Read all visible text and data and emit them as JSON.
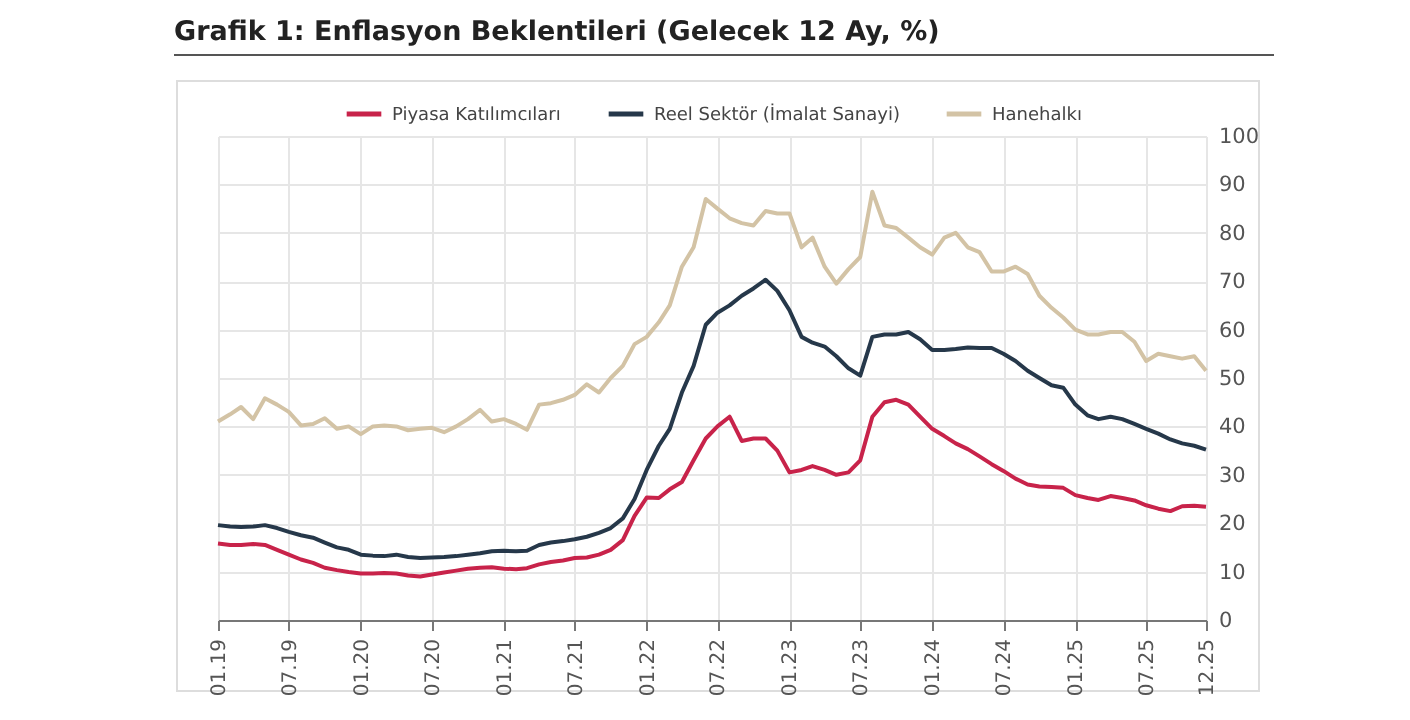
{
  "chart_data": {
    "type": "line",
    "title": "Grafik 1: Enflasyon Beklentileri (Gelecek 12 Ay, %)",
    "x": [
      "2019-01",
      "2019-02",
      "2019-03",
      "2019-04",
      "2019-05",
      "2019-06",
      "2019-07",
      "2019-08",
      "2019-09",
      "2019-10",
      "2019-11",
      "2019-12",
      "2020-01",
      "2020-02",
      "2020-03",
      "2020-04",
      "2020-05",
      "2020-06",
      "2020-07",
      "2020-08",
      "2020-09",
      "2020-10",
      "2020-11",
      "2020-12",
      "2021-01",
      "2021-02",
      "2021-03",
      "2021-04",
      "2021-05",
      "2021-06",
      "2021-07",
      "2021-08",
      "2021-09",
      "2021-10",
      "2021-11",
      "2021-12",
      "2022-01",
      "2022-02",
      "2022-03",
      "2022-04",
      "2022-05",
      "2022-06",
      "2022-07",
      "2022-08",
      "2022-09",
      "2022-10",
      "2022-11",
      "2022-12",
      "2023-01",
      "2023-02",
      "2023-03",
      "2023-04",
      "2023-05",
      "2023-06",
      "2023-07",
      "2023-08",
      "2023-09",
      "2023-10",
      "2023-11",
      "2023-12",
      "2024-01",
      "2024-02",
      "2024-03",
      "2024-04",
      "2024-05",
      "2024-06",
      "2024-07",
      "2024-08",
      "2024-09",
      "2024-10",
      "2024-11",
      "2024-12",
      "2025-01",
      "2025-02",
      "2025-03",
      "2025-04",
      "2025-05",
      "2025-06",
      "2025-07",
      "2025-08",
      "2025-09",
      "2025-10",
      "2025-11",
      "2025-12"
    ],
    "series": [
      {
        "name": "Piyasa Katılımcıları",
        "color": "#c8234a",
        "values": [
          15.8,
          15.5,
          15.5,
          15.7,
          15.5,
          14.5,
          13.5,
          12.5,
          11.8,
          10.8,
          10.3,
          9.9,
          9.6,
          9.6,
          9.7,
          9.6,
          9.2,
          9.0,
          9.4,
          9.8,
          10.2,
          10.6,
          10.8,
          10.9,
          10.6,
          10.5,
          10.7,
          11.5,
          12.0,
          12.3,
          12.8,
          12.9,
          13.5,
          14.5,
          16.5,
          21.5,
          25.3,
          25.2,
          27,
          28.5,
          33,
          37.5,
          40,
          42,
          37,
          37.5,
          37.5,
          35,
          30.5,
          31,
          31.8,
          31,
          30,
          30.5,
          33,
          42,
          45,
          45.5,
          44.5,
          42,
          39.5,
          38,
          36.5,
          35.3,
          33.8,
          32.2,
          30.8,
          29.2,
          28,
          27.6,
          27.5,
          27.3,
          25.8,
          25.2,
          24.8,
          25.6,
          25.2,
          24.7,
          23.7,
          23,
          22.5,
          23.5,
          23.6,
          23.4
        ]
      },
      {
        "name": "Reel Sektör (İmalat Sanayi)",
        "color": "#26384a",
        "values": [
          19.6,
          19.3,
          19.2,
          19.3,
          19.6,
          19,
          18.2,
          17.5,
          17,
          16,
          15,
          14.5,
          13.5,
          13.3,
          13.2,
          13.5,
          13,
          12.8,
          12.9,
          13,
          13.2,
          13.5,
          13.8,
          14.2,
          14.3,
          14.2,
          14.3,
          15.5,
          16,
          16.3,
          16.7,
          17.2,
          18,
          19,
          21,
          25,
          31,
          36,
          39.5,
          47,
          52.5,
          61,
          63.5,
          65,
          67,
          68.5,
          70.3,
          68,
          64,
          58.5,
          57.3,
          56.5,
          54.5,
          52,
          50.5,
          58.5,
          59,
          59,
          59.5,
          58,
          55.8,
          55.8,
          56,
          56.3,
          56.2,
          56.2,
          55,
          53.5,
          51.5,
          50,
          48.5,
          48,
          44.5,
          42.3,
          41.5,
          42,
          41.5,
          40.5,
          39.5,
          38.5,
          37.3,
          36.5,
          36,
          35.2
        ]
      },
      {
        "name": "Hanehalkı",
        "color": "#d3c3a5",
        "values": [
          41,
          42.5,
          44,
          41.5,
          45.8,
          44.5,
          43,
          40.2,
          40.5,
          41.7,
          39.5,
          40,
          38.4,
          40,
          40.2,
          40,
          39.2,
          39.5,
          39.7,
          38.8,
          40,
          41.5,
          43.4,
          41,
          41.5,
          40.5,
          39.3,
          44.5,
          44.8,
          45.5,
          46.5,
          48.7,
          47,
          50,
          52.5,
          57,
          58.5,
          61.5,
          65,
          73,
          77,
          87,
          85,
          83,
          82,
          81.5,
          84.5,
          84,
          84,
          77,
          79,
          73,
          69.5,
          72.5,
          75,
          88.5,
          81.5,
          81,
          79,
          77,
          75.5,
          79,
          80,
          77,
          76,
          72,
          72,
          73,
          71.5,
          67,
          64.5,
          62.5,
          60,
          59,
          59,
          59.5,
          59.5,
          57.5,
          53.5,
          55,
          54.5,
          54,
          54.5,
          51.5
        ]
      }
    ],
    "xlim": [
      "2019-01",
      "2025-12"
    ],
    "xticks": [
      {
        "value": "2019-01",
        "label": "01.19"
      },
      {
        "value": "2019-07",
        "label": "07.19"
      },
      {
        "value": "2020-01",
        "label": "01.20"
      },
      {
        "value": "2020-07",
        "label": "07.20"
      },
      {
        "value": "2021-01",
        "label": "01.21"
      },
      {
        "value": "2021-07",
        "label": "07.21"
      },
      {
        "value": "2022-01",
        "label": "01.22"
      },
      {
        "value": "2022-07",
        "label": "07.22"
      },
      {
        "value": "2023-01",
        "label": "01.23"
      },
      {
        "value": "2023-07",
        "label": "07.23"
      },
      {
        "value": "2024-01",
        "label": "01.24"
      },
      {
        "value": "2024-07",
        "label": "07.24"
      },
      {
        "value": "2025-01",
        "label": "01.25"
      },
      {
        "value": "2025-07",
        "label": "07.25"
      },
      {
        "value": "2025-12",
        "label": "12.25"
      }
    ],
    "ylim": [
      0,
      100
    ],
    "yticks": [
      0,
      10,
      20,
      30,
      40,
      50,
      60,
      70,
      80,
      90,
      100
    ],
    "grid": true,
    "legend": "top",
    "marker": "none",
    "line_style": "solid"
  }
}
